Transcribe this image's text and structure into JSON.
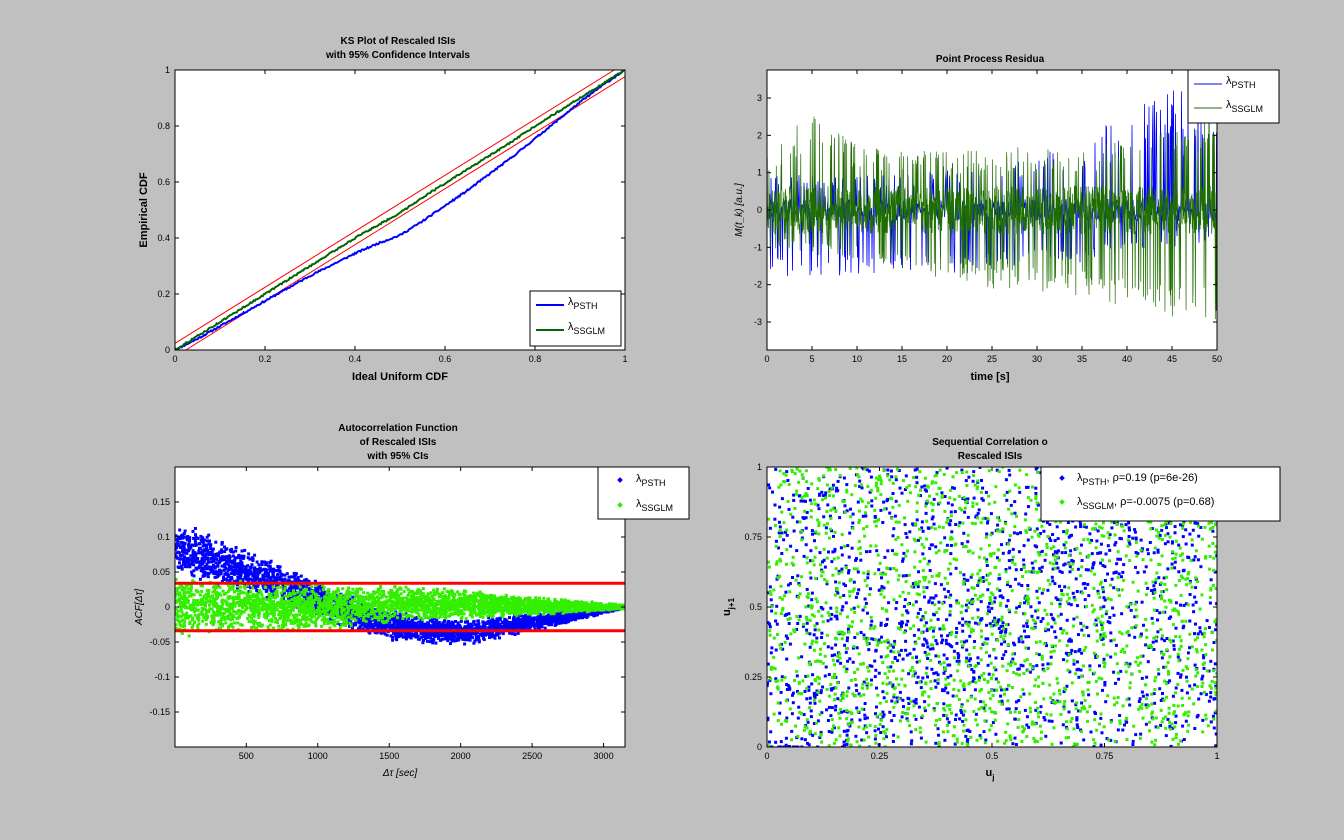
{
  "colors": {
    "figure_bg": "#c0c0c0",
    "axes_bg": "#ffffff",
    "psth": "#0000ff",
    "ssglm_line": "#006400",
    "ssglm_points": "#33ee00",
    "ci_ks": "#ff0000",
    "ci_acf": "#ff0000",
    "text": "#000000"
  },
  "chart_data": [
    {
      "id": "ks",
      "type": "line",
      "title": [
        "KS Plot of Rescaled ISIs",
        "with 95% Confidence Intervals"
      ],
      "xlabel": "Ideal Uniform CDF",
      "ylabel": "Empirical CDF",
      "xlim": [
        0,
        1
      ],
      "ylim": [
        0,
        1
      ],
      "xticks": [
        0,
        0.2,
        0.4,
        0.6,
        0.8,
        1
      ],
      "xticklabels": [
        "0",
        "0.2",
        "0.4",
        "0.6",
        "0.8",
        "1"
      ],
      "yticks": [
        0,
        0.2,
        0.4,
        0.6,
        0.8,
        1
      ],
      "yticklabels": [
        "0",
        "0.2",
        "0.4",
        "0.6",
        "0.8",
        "1"
      ],
      "legend_position": "bottom-right",
      "ci_halfwidth": 0.024,
      "series": [
        {
          "name": "PSTH",
          "color": "#0000ff",
          "x": [
            0,
            0.05,
            0.1,
            0.15,
            0.2,
            0.25,
            0.3,
            0.35,
            0.4,
            0.45,
            0.5,
            0.55,
            0.6,
            0.65,
            0.7,
            0.75,
            0.8,
            0.85,
            0.9,
            0.95,
            1
          ],
          "y": [
            0,
            0.04,
            0.085,
            0.13,
            0.175,
            0.22,
            0.265,
            0.305,
            0.345,
            0.38,
            0.41,
            0.46,
            0.515,
            0.57,
            0.63,
            0.69,
            0.755,
            0.82,
            0.885,
            0.945,
            1
          ]
        },
        {
          "name": "SSGLM",
          "color": "#006400",
          "x": [
            0,
            0.05,
            0.1,
            0.15,
            0.2,
            0.25,
            0.3,
            0.35,
            0.4,
            0.45,
            0.5,
            0.55,
            0.6,
            0.65,
            0.7,
            0.75,
            0.8,
            0.85,
            0.9,
            0.95,
            1
          ],
          "y": [
            0,
            0.05,
            0.1,
            0.15,
            0.2,
            0.25,
            0.3,
            0.35,
            0.4,
            0.445,
            0.49,
            0.545,
            0.595,
            0.645,
            0.695,
            0.745,
            0.8,
            0.85,
            0.9,
            0.95,
            1
          ]
        }
      ]
    },
    {
      "id": "residual",
      "type": "line",
      "title": [
        "Point Process Residua"
      ],
      "xlabel": "time [s]",
      "ylabel": "M(t_k) [a.u.]",
      "xlim": [
        0,
        50
      ],
      "ylim": [
        -3.75,
        3.75
      ],
      "xticks": [
        0,
        5,
        10,
        15,
        20,
        25,
        30,
        35,
        40,
        45,
        50
      ],
      "xticklabels": [
        "0",
        "5",
        "10",
        "15",
        "20",
        "25",
        "30",
        "35",
        "40",
        "45",
        "50"
      ],
      "yticks": [
        -3,
        -2,
        -1,
        0,
        1,
        2,
        3
      ],
      "yticklabels": [
        "-3",
        "-2",
        "-1",
        "0",
        "1",
        "2",
        "3"
      ],
      "legend_position": "top-right",
      "series": [
        {
          "name": "PSTH",
          "color": "#0000ff",
          "t": [
            0,
            5,
            10,
            15,
            20,
            25,
            30,
            35,
            40,
            45,
            50
          ],
          "upper": [
            0.9,
            1.0,
            0.9,
            1.0,
            1.1,
            1.2,
            1.6,
            1.8,
            2.8,
            3.2,
            3.3
          ],
          "lower": [
            -1.8,
            -1.8,
            -1.8,
            -1.8,
            -1.7,
            -1.6,
            -1.5,
            -1.4,
            -1.2,
            -1.0,
            -0.9
          ]
        },
        {
          "name": "SSGLM",
          "color": "#1e6e00",
          "t": [
            0,
            5,
            10,
            15,
            20,
            25,
            30,
            35,
            40,
            45,
            50
          ],
          "upper": [
            1.7,
            2.6,
            1.8,
            1.6,
            1.6,
            1.7,
            1.8,
            1.7,
            1.9,
            2.2,
            2.7
          ],
          "lower": [
            -1.0,
            -1.2,
            -1.3,
            -1.6,
            -1.9,
            -2.1,
            -2.2,
            -2.3,
            -2.6,
            -2.9,
            -3.0
          ]
        }
      ]
    },
    {
      "id": "acf",
      "type": "scatter",
      "title": [
        "Autocorrelation Function",
        "of Rescaled ISIs",
        "with 95% CIs"
      ],
      "xlabel": "Δτ [sec]",
      "ylabel": "ACF[Δτ]",
      "xlim": [
        1,
        3150
      ],
      "ylim": [
        -0.2,
        0.2
      ],
      "xticks": [
        500,
        1000,
        1500,
        2000,
        2500,
        3000
      ],
      "xticklabels": [
        "500",
        "1000",
        "1500",
        "2000",
        "2500",
        "3000"
      ],
      "yticks": [
        -0.15,
        -0.1,
        -0.05,
        0,
        0.05,
        0.1,
        0.15
      ],
      "yticklabels": [
        "-0.15",
        "-0.1",
        "-0.05",
        "0",
        "0.05",
        "0.1",
        "0.15"
      ],
      "ci": [
        0.034,
        -0.034
      ],
      "legend_position": "top-right",
      "series": [
        {
          "name": "PSTH",
          "color": "#0000ff",
          "x": [
            0,
            300,
            600,
            900,
            1200,
            1500,
            1800,
            2100,
            2400,
            2700,
            3000,
            3150
          ],
          "mean": [
            0.085,
            0.065,
            0.045,
            0.02,
            -0.005,
            -0.025,
            -0.035,
            -0.035,
            -0.025,
            -0.015,
            -0.005,
            0
          ],
          "spread": [
            0.04,
            0.035,
            0.03,
            0.027,
            0.025,
            0.022,
            0.02,
            0.018,
            0.015,
            0.01,
            0.005,
            0.002
          ]
        },
        {
          "name": "SSGLM",
          "color": "#33ee00",
          "x": [
            0,
            300,
            600,
            900,
            1200,
            1500,
            1800,
            2100,
            2400,
            2700,
            3000,
            3150
          ],
          "mean": [
            0,
            0,
            0,
            0,
            0,
            0.005,
            0.005,
            0.003,
            0.002,
            0.001,
            0,
            0
          ],
          "spread": [
            0.045,
            0.04,
            0.038,
            0.035,
            0.03,
            0.027,
            0.024,
            0.02,
            0.016,
            0.011,
            0.006,
            0.003
          ]
        }
      ]
    },
    {
      "id": "seq",
      "type": "scatter",
      "title": [
        "Sequential Correlation o",
        "Rescaled ISIs"
      ],
      "xlabel": "u_j",
      "ylabel": "u_j+1",
      "xlim": [
        0,
        1
      ],
      "ylim": [
        0,
        1
      ],
      "xticks": [
        0,
        0.25,
        0.5,
        0.75,
        1
      ],
      "xticklabels": [
        "0",
        "0.25",
        "0.5",
        "0.75",
        "1"
      ],
      "yticks": [
        0,
        0.25,
        0.5,
        0.75,
        1
      ],
      "yticklabels": [
        "0",
        "0.25",
        "0.5",
        "0.75",
        "1"
      ],
      "legend_position": "top-right",
      "series": [
        {
          "name": "PSTH",
          "color": "#0000ff",
          "rho": 0.19,
          "p": "6e-26",
          "stat": "=0.19 (p=6e-26)"
        },
        {
          "name": "SSGLM",
          "color": "#33ee00",
          "rho": -0.0075,
          "p": "0.68",
          "stat": "=-0.0075 (p=0.68)"
        }
      ]
    }
  ]
}
